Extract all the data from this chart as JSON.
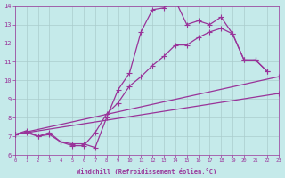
{
  "xlabel": "Windchill (Refroidissement éolien,°C)",
  "xlim": [
    0,
    23
  ],
  "ylim": [
    6,
    14
  ],
  "xticks": [
    0,
    1,
    2,
    3,
    4,
    5,
    6,
    7,
    8,
    9,
    10,
    11,
    12,
    13,
    14,
    15,
    16,
    17,
    18,
    19,
    20,
    21,
    22,
    23
  ],
  "yticks": [
    6,
    7,
    8,
    9,
    10,
    11,
    12,
    13,
    14
  ],
  "bg_color": "#c5eaea",
  "line_color": "#993399",
  "grid_color": "#aacccc",
  "line1_x": [
    0,
    1,
    2,
    3,
    4,
    5,
    6,
    7,
    8,
    9,
    10,
    11,
    12,
    13,
    14,
    15,
    16,
    17,
    18,
    19,
    20,
    21,
    22
  ],
  "line1_y": [
    7.1,
    7.3,
    7.0,
    7.2,
    6.7,
    6.6,
    6.6,
    6.4,
    8.0,
    9.5,
    10.4,
    12.6,
    13.8,
    13.9,
    14.3,
    13.0,
    13.2,
    13.0,
    13.4,
    12.5,
    11.1,
    11.1,
    10.5
  ],
  "line2_x": [
    0,
    1,
    2,
    3,
    4,
    5,
    6,
    7,
    8,
    9,
    10,
    11,
    12,
    13,
    14,
    15,
    16,
    17,
    18,
    19,
    20,
    21,
    22
  ],
  "line2_y": [
    7.1,
    7.2,
    7.0,
    7.1,
    6.7,
    6.5,
    6.5,
    7.2,
    8.2,
    8.8,
    9.7,
    10.2,
    10.8,
    11.3,
    11.9,
    11.9,
    12.3,
    12.6,
    12.8,
    12.5,
    11.1,
    11.1,
    10.5
  ],
  "line3_x": [
    0,
    23
  ],
  "line3_y": [
    7.1,
    10.2
  ],
  "line4_x": [
    0,
    23
  ],
  "line4_y": [
    7.1,
    9.3
  ]
}
